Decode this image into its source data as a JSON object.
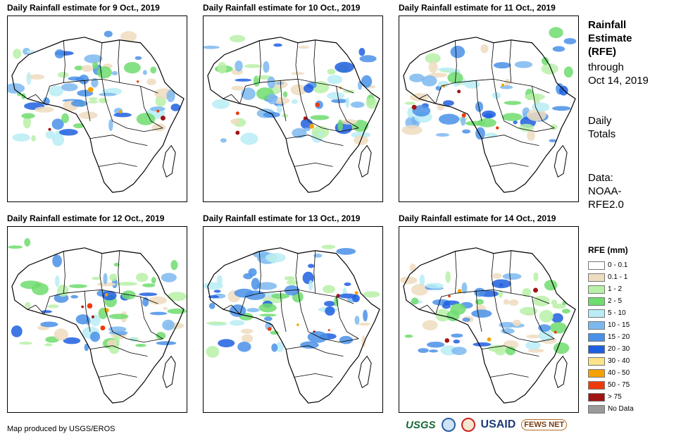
{
  "panels": [
    {
      "title": "Daily Rainfall estimate for 9 Oct., 2019"
    },
    {
      "title": "Daily Rainfall estimate for 10 Oct., 2019"
    },
    {
      "title": "Daily Rainfall estimate for 11 Oct., 2019"
    },
    {
      "title": "Daily Rainfall estimate for 12 Oct., 2019"
    },
    {
      "title": "Daily Rainfall estimate for 13 Oct., 2019"
    },
    {
      "title": "Daily Rainfall estimate for 14 Oct., 2019"
    }
  ],
  "sidebar": {
    "title_line1": "Rainfall",
    "title_line2": "Estimate",
    "title_line3": "(RFE)",
    "through": "through",
    "date": "Oct 14, 2019",
    "daily1": "Daily",
    "daily2": "Totals",
    "data1": "Data:",
    "data2": "NOAA-",
    "data3": "RFE2.0"
  },
  "legend": {
    "title": "RFE (mm)",
    "items": [
      {
        "label": "0 - 0.1",
        "color": "#ffffff"
      },
      {
        "label": "0.1 - 1",
        "color": "#eedcc0"
      },
      {
        "label": "1 - 2",
        "color": "#b8f0a8"
      },
      {
        "label": "2 - 5",
        "color": "#6edc6e"
      },
      {
        "label": "5 - 10",
        "color": "#b9ecf4"
      },
      {
        "label": "10 - 15",
        "color": "#7cb8f0"
      },
      {
        "label": "15 - 20",
        "color": "#4a90e8"
      },
      {
        "label": "20 - 30",
        "color": "#1e5fe0"
      },
      {
        "label": "30 - 40",
        "color": "#fae38a"
      },
      {
        "label": "40 - 50",
        "color": "#f5a100"
      },
      {
        "label": "50 - 75",
        "color": "#ee3a0a"
      },
      {
        "label": "> 75",
        "color": "#a01414"
      },
      {
        "label": "No Data",
        "color": "#9a9a9a"
      }
    ]
  },
  "footer": {
    "credit": "Map produced by USGS/EROS",
    "logo_usgs": "USGS",
    "logo_usaid": "USAID",
    "logo_fews": "FEWS NET"
  }
}
